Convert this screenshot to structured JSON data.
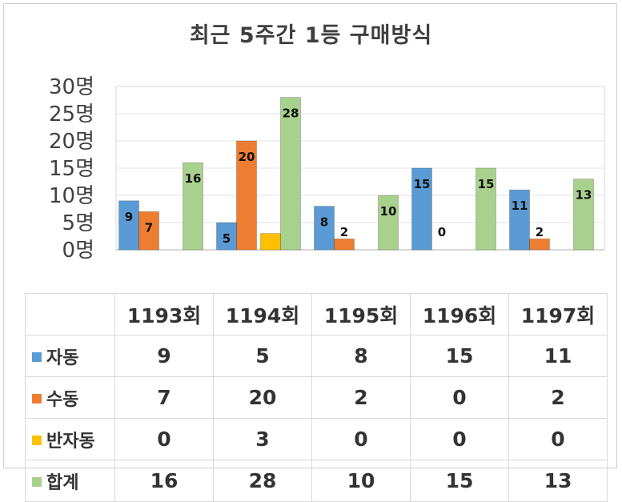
{
  "chart_data": {
    "type": "bar",
    "title": "최근 5주간 1등 구매방식",
    "categories": [
      "1193회",
      "1194회",
      "1195회",
      "1196회",
      "1197회"
    ],
    "series": [
      {
        "name": "자동",
        "color": "#5b9bd5",
        "values": [
          9,
          5,
          8,
          15,
          11
        ],
        "labels": [
          "9",
          "5",
          "8",
          "15",
          "11"
        ]
      },
      {
        "name": "수동",
        "color": "#ed7d31",
        "values": [
          7,
          20,
          2,
          0,
          2
        ],
        "labels": [
          "7",
          "20",
          "2",
          "0",
          "2"
        ]
      },
      {
        "name": "반자동",
        "color": "#ffc000",
        "values": [
          0,
          3,
          0,
          0,
          0
        ],
        "labels": [
          "",
          "",
          "",
          "",
          ""
        ]
      },
      {
        "name": "합계",
        "color": "#a9d18e",
        "values": [
          16,
          28,
          10,
          15,
          13
        ],
        "labels": [
          "16",
          "28",
          "10",
          "15",
          "13"
        ]
      }
    ],
    "ylim": [
      0,
      30
    ],
    "yticks": [
      "0명",
      "5명",
      "10명",
      "15명",
      "20명",
      "25명",
      "30명"
    ],
    "grid": true,
    "legend": "data-table"
  }
}
